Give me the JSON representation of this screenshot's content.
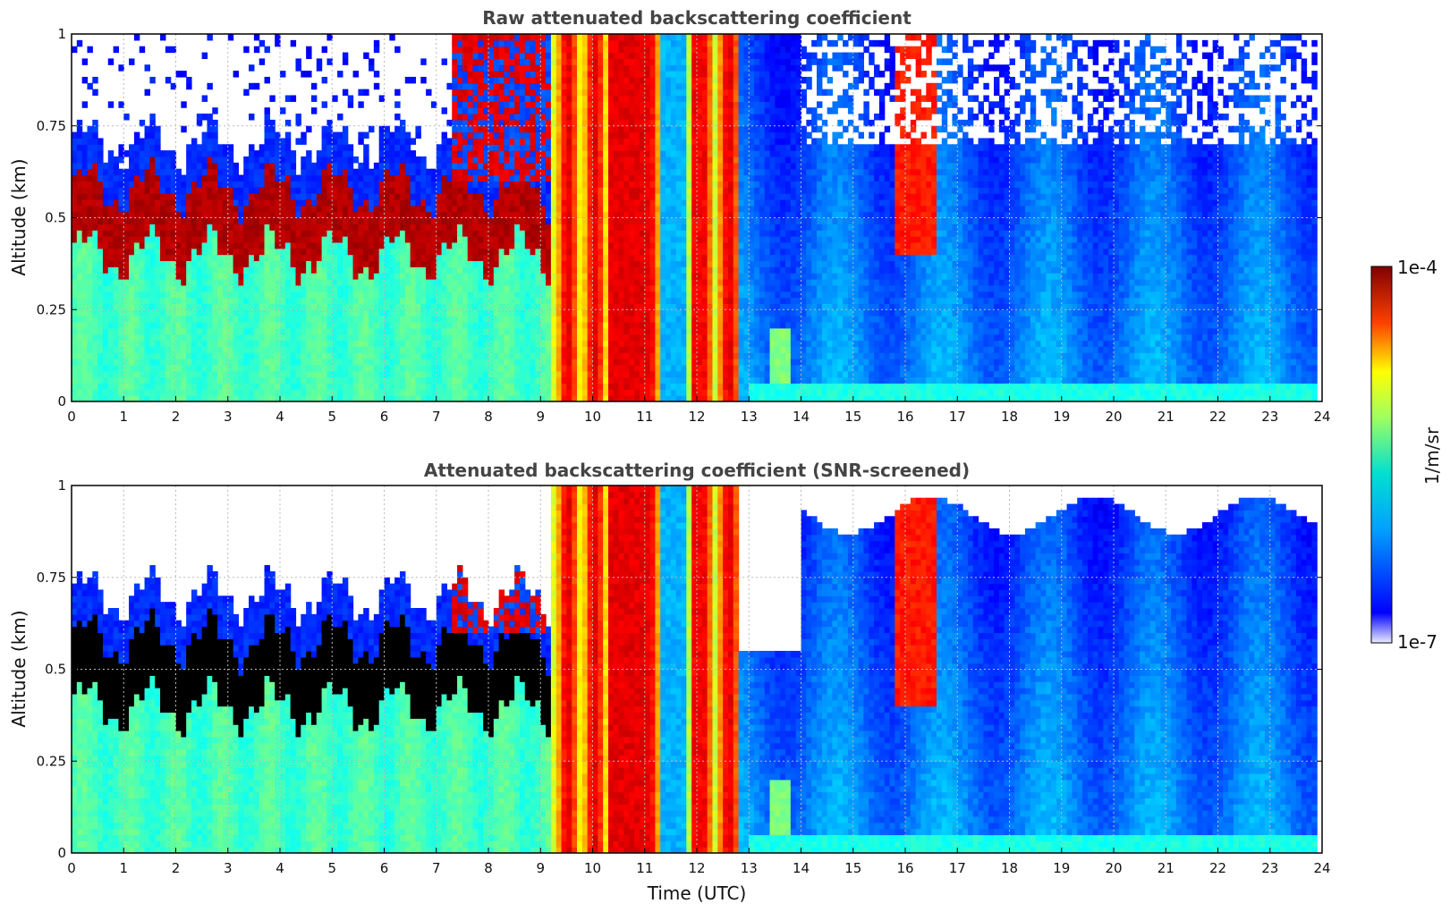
{
  "chart_data": [
    {
      "type": "heatmap",
      "title": "Raw attenuated backscattering coefficient",
      "xlabel": "",
      "ylabel": "Altitude (km)",
      "xlim": [
        0,
        24
      ],
      "ylim": [
        0,
        1
      ],
      "x_ticks": [
        "0",
        "1",
        "2",
        "3",
        "4",
        "5",
        "6",
        "7",
        "8",
        "9",
        "10",
        "11",
        "12",
        "13",
        "14",
        "15",
        "16",
        "17",
        "18",
        "19",
        "20",
        "21",
        "22",
        "23",
        "24"
      ],
      "y_ticks": [
        "0",
        "0.25",
        "0.5",
        "0.75",
        "1"
      ],
      "grid": true,
      "screened": false
    },
    {
      "type": "heatmap",
      "title": "Attenuated backscattering coefficient (SNR-screened)",
      "xlabel": "Time (UTC)",
      "ylabel": "Altitude (km)",
      "xlim": [
        0,
        24
      ],
      "ylim": [
        0,
        1
      ],
      "x_ticks": [
        "0",
        "1",
        "2",
        "3",
        "4",
        "5",
        "6",
        "7",
        "8",
        "9",
        "10",
        "11",
        "12",
        "13",
        "14",
        "15",
        "16",
        "17",
        "18",
        "19",
        "20",
        "21",
        "22",
        "23",
        "24"
      ],
      "y_ticks": [
        "0",
        "0.25",
        "0.5",
        "0.75",
        "1"
      ],
      "grid": true,
      "screened": true
    }
  ],
  "colorbar": {
    "label": "1/m/sr",
    "max_label": "1e-4",
    "min_label": "1e-7",
    "scale": "log",
    "colormap": "jet"
  },
  "colors": {
    "title": "#444444",
    "saturated": "#000000",
    "background": "#ffffff"
  }
}
